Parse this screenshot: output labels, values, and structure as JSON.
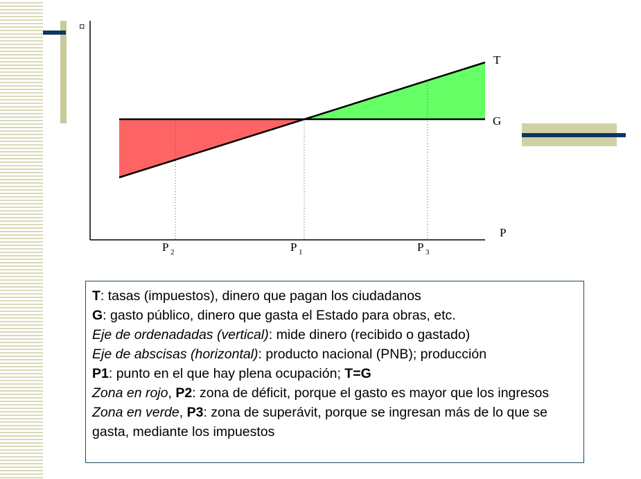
{
  "diagram": {
    "y_axis_symbol": "¤",
    "x_axis_label": "P",
    "line_t_label": "T",
    "line_g_label": "G",
    "ticks": {
      "p2": {
        "main": "P",
        "sub": "2"
      },
      "p1": {
        "main": "P",
        "sub": "1"
      },
      "p3": {
        "main": "P",
        "sub": "3"
      }
    },
    "colors": {
      "deficit_zone": "#ff6464",
      "surplus_zone": "#66ff66",
      "accent": "#0c3763",
      "frame": "#c9c99a"
    }
  },
  "legend": {
    "l1": {
      "bold": "T",
      "rest": ": tasas (impuestos), dinero que pagan los ciudadanos"
    },
    "l2": {
      "bold": "G",
      "rest": ": gasto público, dinero que gasta el Estado para obras, etc."
    },
    "l3": {
      "italic": "Eje de ordenadadas (vertical)",
      "rest": ": mide dinero (recibido o gastado)"
    },
    "l4": {
      "italic": "Eje de abscisas (horizontal)",
      "rest": ": producto nacional (PNB); producción"
    },
    "l5": {
      "bold": "P1",
      "rest": ": punto en el que hay plena ocupación; ",
      "bold2": "T=G"
    },
    "l6": {
      "italic": "Zona en rojo",
      "comma": ", ",
      "bold": "P2",
      "rest": ": zona de déficit, porque el gasto es mayor que los ingresos"
    },
    "l7": {
      "italic": "Zona en verde",
      "comma": ", ",
      "bold": "P3",
      "rest": ": zona de superávit, porque se ingresan más de lo que se gasta, mediante los impuestos"
    }
  }
}
